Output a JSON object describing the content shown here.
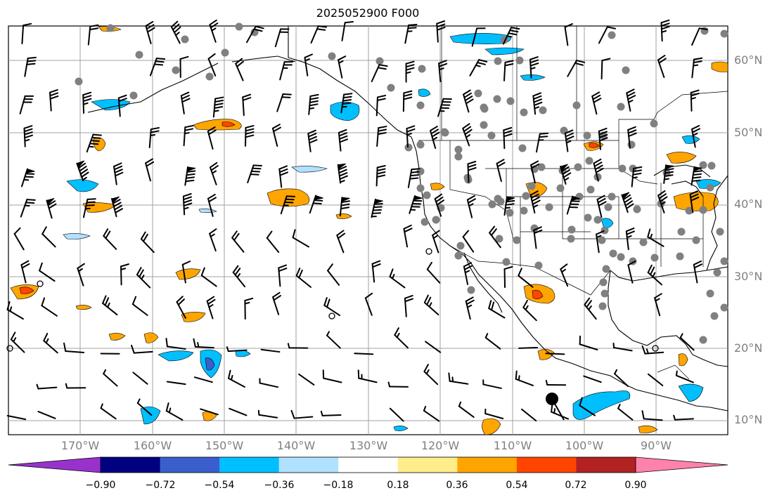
{
  "title": "2025052900 F000",
  "lat_labels": [
    "60°N",
    "50°N",
    "40°N",
    "30°N",
    "20°N",
    "10°N"
  ],
  "lon_labels": [
    "170°W",
    "160°W",
    "150°W",
    "140°W",
    "130°W",
    "120°W",
    "110°W",
    "100°W",
    "90°W"
  ],
  "colorbar": {
    "tick_labels": [
      "−0.90",
      "−0.72",
      "−0.54",
      "−0.36",
      "−0.18",
      "0.18",
      "0.36",
      "0.54",
      "0.72",
      "0.90"
    ],
    "colors": [
      "#9932cc",
      "#000080",
      "#3a5fcd",
      "#00bfff",
      "#b0e2ff",
      "#ffffff",
      "#ffec8b",
      "#ffa500",
      "#ff4500",
      "#b22222",
      "#ff82ab"
    ]
  },
  "colors": {
    "grid": "#a0a0a0",
    "coast": "#000000",
    "pos_moderate": "#ffa500",
    "pos_strong": "#ff4500",
    "neg_moderate": "#00bfff",
    "neg_weak": "#b0e2ff",
    "neg_strong": "#3a5fcd",
    "station_dot": "#808080"
  }
}
